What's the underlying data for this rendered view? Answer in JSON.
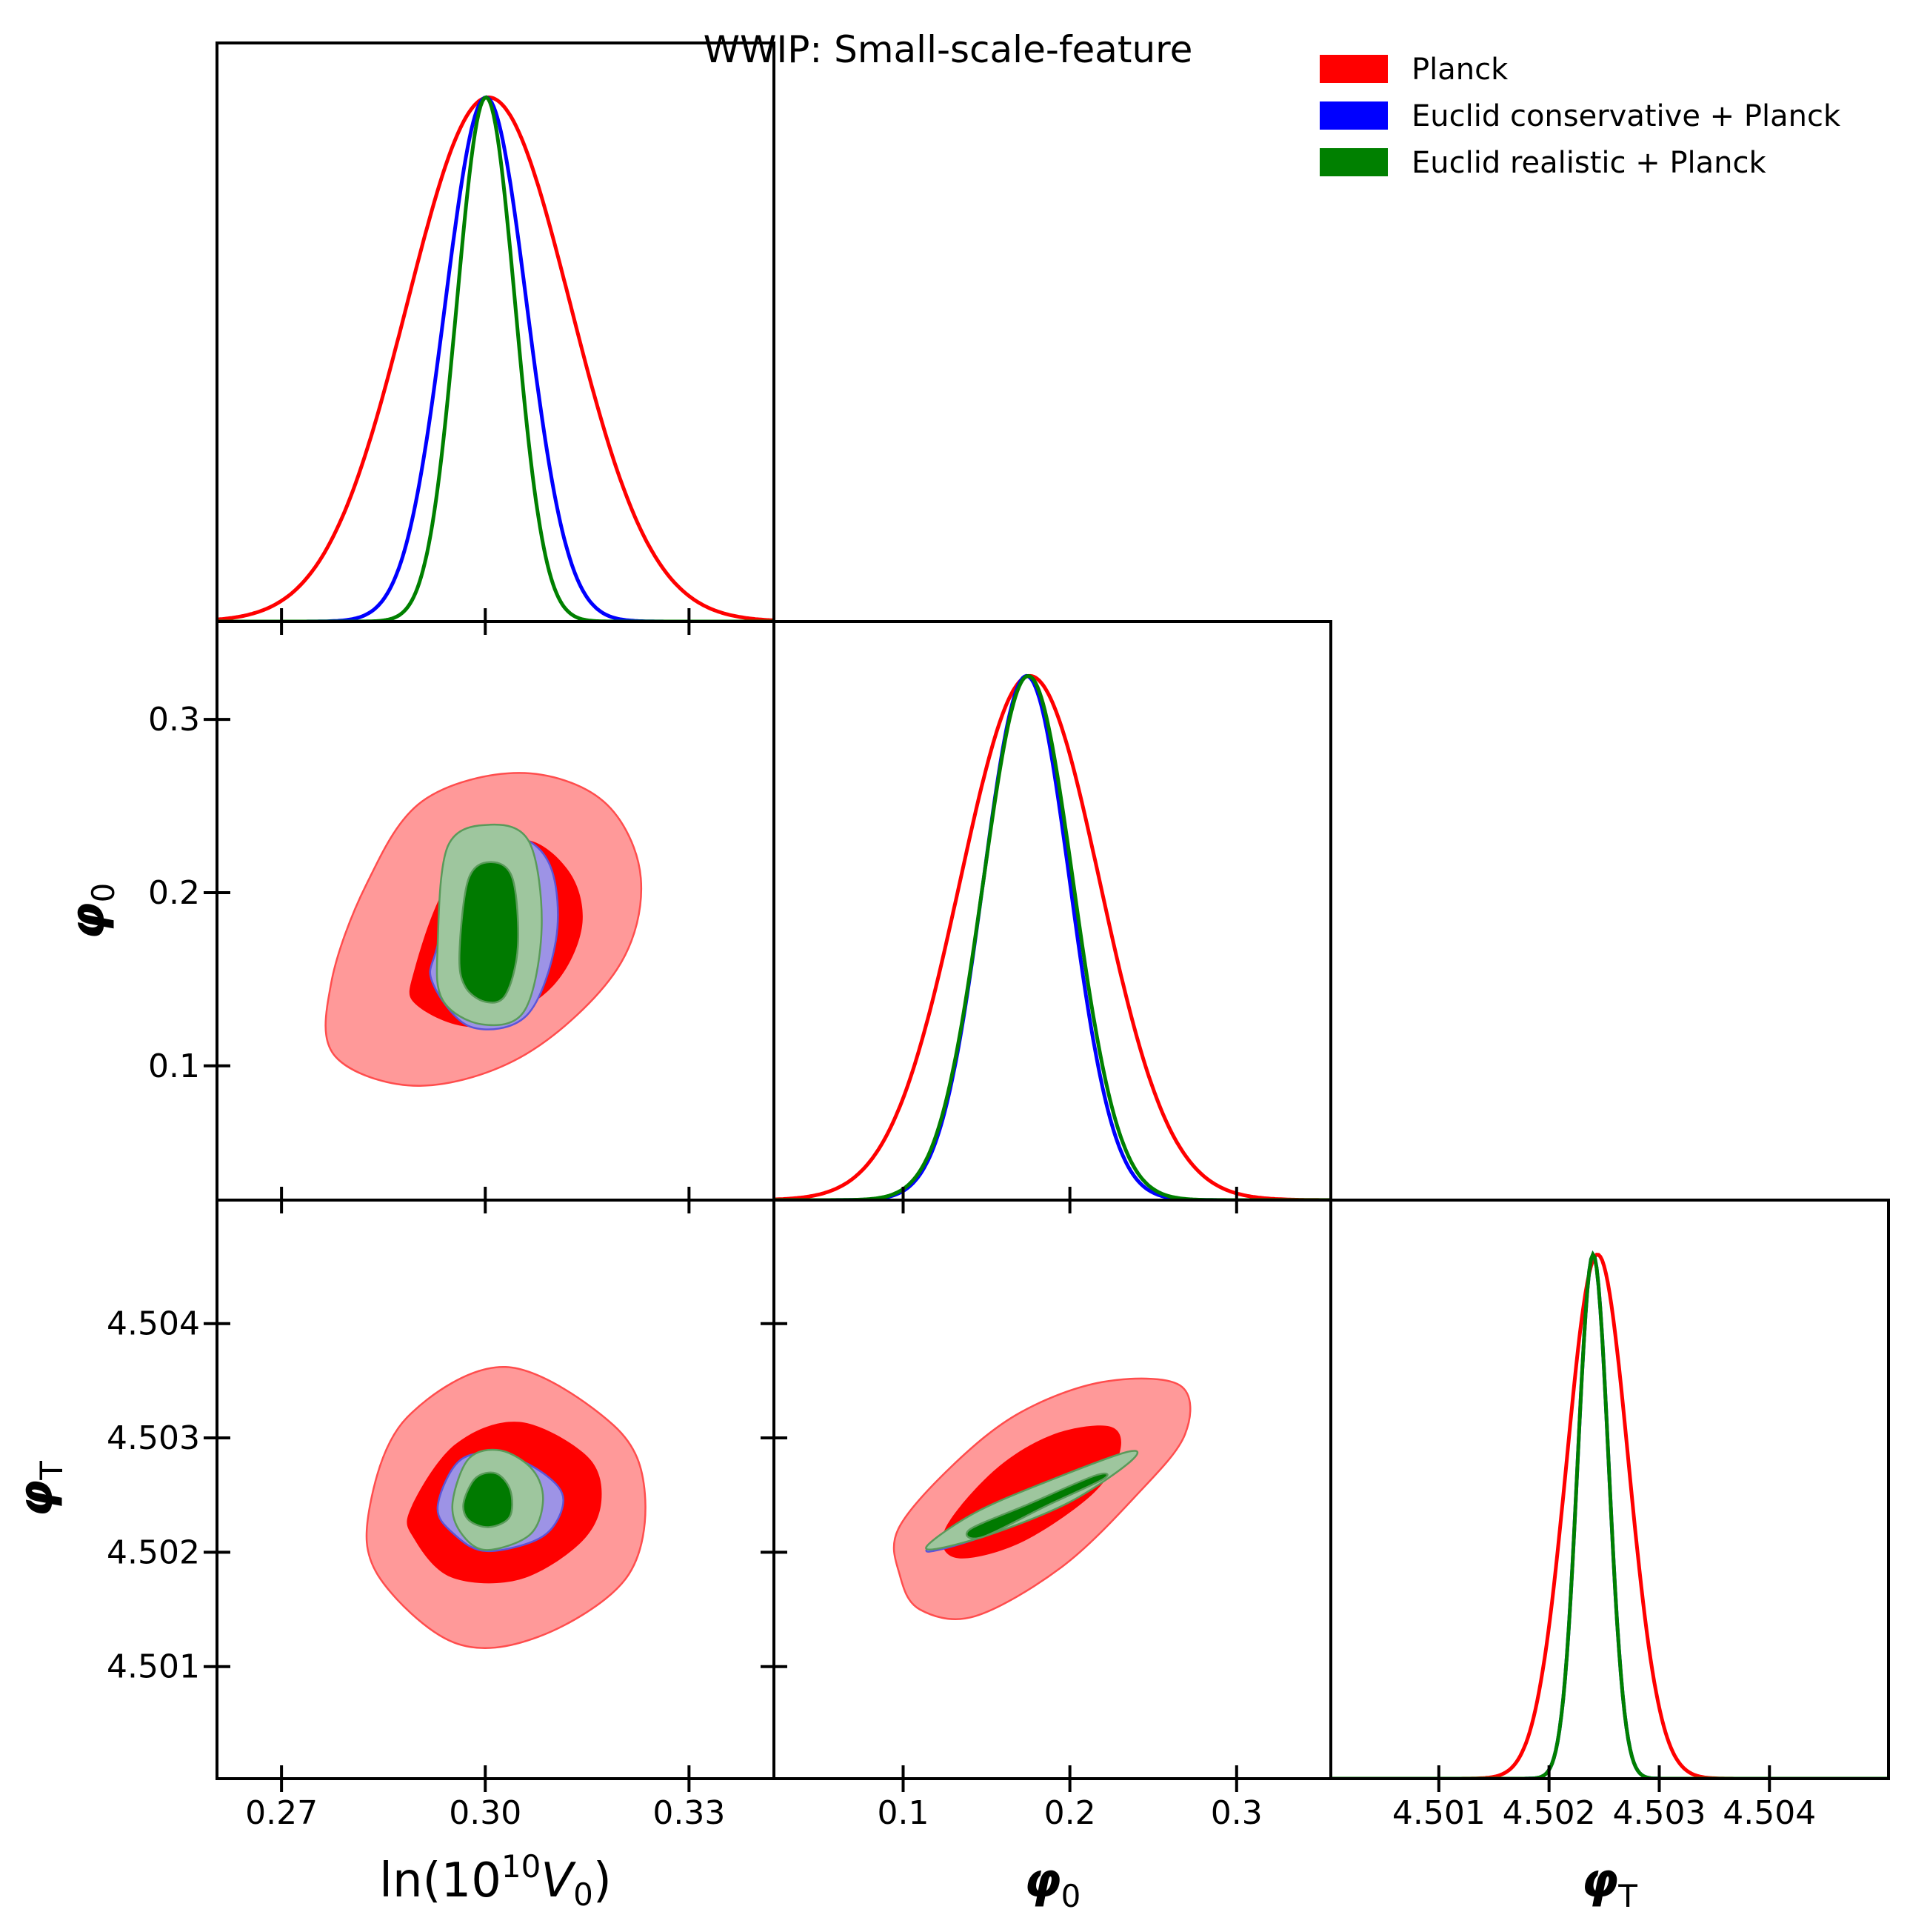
{
  "chart_data": {
    "type": "triangle-corner",
    "title": "WWIP: Small-scale-feature",
    "legend": {
      "placement": "top-right",
      "entries": [
        {
          "label": "Planck",
          "color": "#ff0000"
        },
        {
          "label": "Euclid conservative + Planck",
          "color": "#0000ff"
        },
        {
          "label": "Euclid realistic + Planck",
          "color": "#008000"
        }
      ]
    },
    "parameters": [
      {
        "key": "lnV0",
        "label": "ln(10^10 V_0)",
        "range": [
          0.2605,
          0.3425
        ],
        "ticks": [
          0.27,
          0.3,
          0.33
        ],
        "tick_labels": [
          "0.27",
          "0.30",
          "0.33"
        ]
      },
      {
        "key": "phi0",
        "label": "φ_0",
        "range": [
          0.0225,
          0.3565
        ],
        "ticks": [
          0.1,
          0.2,
          0.3
        ],
        "tick_labels": [
          "0.1",
          "0.2",
          "0.3"
        ]
      },
      {
        "key": "phiT",
        "label": "φ_T",
        "range": [
          4.50002,
          4.50508
        ],
        "ticks": [
          4.501,
          4.502,
          4.503,
          4.504
        ],
        "tick_labels": [
          "4.501",
          "4.502",
          "4.503",
          "4.504"
        ]
      }
    ],
    "marginals": [
      {
        "param": "lnV0",
        "series": [
          {
            "name": "Planck",
            "color": "#ff0000",
            "mean": 0.3005,
            "sigma": 0.012
          },
          {
            "name": "Euclid conservative + Planck",
            "color": "#0000ff",
            "mean": 0.3001,
            "sigma": 0.006
          },
          {
            "name": "Euclid realistic + Planck",
            "color": "#008000",
            "mean": 0.3001,
            "sigma": 0.0043
          }
        ]
      },
      {
        "param": "phi0",
        "series": [
          {
            "name": "Planck",
            "color": "#ff0000",
            "mean": 0.176,
            "sigma": 0.042
          },
          {
            "name": "Euclid conservative + Planck",
            "color": "#0000ff",
            "mean": 0.174,
            "sigma": 0.026
          },
          {
            "name": "Euclid realistic + Planck",
            "color": "#008000",
            "mean": 0.175,
            "sigma": 0.027
          }
        ]
      },
      {
        "param": "phiT",
        "series": [
          {
            "name": "Planck",
            "color": "#ff0000",
            "mean": 4.50244,
            "sigma": 0.00028
          },
          {
            "name": "Euclid conservative + Planck",
            "color": "#0000ff",
            "mean": 4.5024,
            "sigma": 0.00014
          },
          {
            "name": "Euclid realistic + Planck",
            "color": "#008000",
            "mean": 4.5024,
            "sigma": 0.00014
          }
        ]
      }
    ],
    "contours": [
      {
        "x": "lnV0",
        "y": "phi0",
        "series": [
          {
            "name": "Planck",
            "color": "#ff0000",
            "level": "95%",
            "center": [
              0.3,
              0.18
            ],
            "points": [
              [
                0.2825,
                0.2048
              ],
              [
                0.2907,
                0.2527
              ],
              [
                0.305,
                0.2691
              ],
              [
                0.3174,
                0.2527
              ],
              [
                0.3229,
                0.2083
              ],
              [
                0.3194,
                0.1558
              ],
              [
                0.306,
                0.1068
              ],
              [
                0.2904,
                0.0885
              ],
              [
                0.2779,
                0.1055
              ],
              [
                0.2773,
                0.1476
              ]
            ]
          },
          {
            "name": "Planck",
            "color": "#ff0000",
            "level": "68%",
            "center": [
              0.3,
              0.178
            ],
            "points": [
              [
                0.2895,
                0.1545
              ],
              [
                0.2952,
                0.2095
              ],
              [
                0.3052,
                0.2307
              ],
              [
                0.3124,
                0.2118
              ],
              [
                0.3142,
                0.1793
              ],
              [
                0.3094,
                0.1438
              ],
              [
                0.299,
                0.1226
              ],
              [
                0.29,
                0.1347
              ]
            ]
          },
          {
            "name": "Euclid conservative + Planck",
            "color": "#0000ff",
            "level": "95%",
            "center": [
              0.3,
              0.18
            ],
            "points": [
              [
                0.293,
                0.17
              ],
              [
                0.2968,
                0.2263
              ],
              [
                0.3048,
                0.2322
              ],
              [
                0.3097,
                0.214
              ],
              [
                0.3104,
                0.1724
              ],
              [
                0.3061,
                0.1291
              ],
              [
                0.2978,
                0.1226
              ],
              [
                0.2922,
                0.1485
              ]
            ]
          },
          {
            "name": "Euclid conservative + Planck",
            "color": "#0000ff",
            "level": "68%",
            "center": [
              0.3,
              0.18
            ],
            "points": [
              [
                0.298,
                0.18
              ],
              [
                0.3,
                0.216
              ],
              [
                0.303,
                0.21
              ],
              [
                0.303,
                0.16
              ],
              [
                0.3,
                0.145
              ],
              [
                0.2978,
                0.15
              ]
            ]
          },
          {
            "name": "Euclid realistic + Planck",
            "color": "#008000",
            "level": "95%",
            "center": [
              0.3,
              0.18
            ],
            "points": [
              [
                0.293,
                0.17
              ],
              [
                0.2945,
                0.2269
              ],
              [
                0.3007,
                0.2392
              ],
              [
                0.3065,
                0.229
              ],
              [
                0.3083,
                0.18
              ],
              [
                0.3058,
                0.132
              ],
              [
                0.2995,
                0.124
              ],
              [
                0.2937,
                0.1382
              ]
            ]
          },
          {
            "name": "Euclid realistic + Planck",
            "color": "#008000",
            "level": "68%",
            "center": [
              0.3,
              0.178
            ],
            "points": [
              [
                0.2962,
                0.165
              ],
              [
                0.2975,
                0.2075
              ],
              [
                0.3007,
                0.2176
              ],
              [
                0.304,
                0.2084
              ],
              [
                0.3048,
                0.169
              ],
              [
                0.303,
                0.141
              ],
              [
                0.3,
                0.137
              ],
              [
                0.297,
                0.146
              ]
            ]
          }
        ]
      },
      {
        "x": "lnV0",
        "y": "phiT",
        "series": [
          {
            "name": "Planck",
            "color": "#ff0000",
            "level": "95%",
            "center": [
              0.3,
              4.50245
            ],
            "points": [
              [
                0.283,
                4.5024
              ],
              [
                0.2885,
                4.50318
              ],
              [
                0.303,
                4.50362
              ],
              [
                0.3189,
                4.50311
              ],
              [
                0.3235,
                4.50251
              ],
              [
                0.3207,
                4.50177
              ],
              [
                0.3078,
                4.50126
              ],
              [
                0.2954,
                4.50121
              ],
              [
                0.2842,
                4.5018
              ]
            ]
          },
          {
            "name": "Planck",
            "color": "#ff0000",
            "level": "68%",
            "center": [
              0.3,
              4.50245
            ],
            "points": [
              [
                0.289,
                4.50238
              ],
              [
                0.2955,
                4.50294
              ],
              [
                0.305,
                4.50314
              ],
              [
                0.315,
                4.50284
              ],
              [
                0.3171,
                4.50245
              ],
              [
                0.314,
                4.50208
              ],
              [
                0.305,
                4.50176
              ],
              [
                0.295,
                4.50178
              ],
              [
                0.2895,
                4.50212
              ]
            ]
          },
          {
            "name": "Euclid conservative + Planck",
            "color": "#0000ff",
            "level": "95%",
            "center": [
              0.3,
              4.50245
            ],
            "points": [
              [
                0.293,
                4.5024
              ],
              [
                0.2962,
                4.5028
              ],
              [
                0.3023,
                4.50286
              ],
              [
                0.3088,
                4.50268
              ],
              [
                0.3115,
                4.50245
              ],
              [
                0.3085,
                4.50214
              ],
              [
                0.3002,
                4.50201
              ],
              [
                0.2952,
                4.50217
              ]
            ]
          },
          {
            "name": "Euclid conservative + Planck",
            "color": "#0000ff",
            "level": "68%",
            "center": [
              0.3,
              4.50244
            ],
            "points": [
              [
                0.297,
                4.50244
              ],
              [
                0.299,
                4.50262
              ],
              [
                0.302,
                4.50265
              ],
              [
                0.304,
                4.50252
              ],
              [
                0.3035,
                4.50232
              ],
              [
                0.3,
                4.50225
              ]
            ]
          },
          {
            "name": "Euclid realistic + Planck",
            "color": "#008000",
            "level": "95%",
            "center": [
              0.3,
              4.50245
            ],
            "points": [
              [
                0.2952,
                4.50244
              ],
              [
                0.2976,
                4.50282
              ],
              [
                0.3023,
                4.50289
              ],
              [
                0.307,
                4.50272
              ],
              [
                0.3085,
                4.50245
              ],
              [
                0.3065,
                4.50215
              ],
              [
                0.3,
                4.50202
              ],
              [
                0.2963,
                4.50218
              ]
            ]
          },
          {
            "name": "Euclid realistic + Planck",
            "color": "#008000",
            "level": "68%",
            "center": [
              0.3,
              4.50244
            ],
            "points": [
              [
                0.2968,
                4.50243
              ],
              [
                0.2986,
                4.50265
              ],
              [
                0.3016,
                4.50269
              ],
              [
                0.3037,
                4.50254
              ],
              [
                0.3036,
                4.50231
              ],
              [
                0.3006,
                4.50222
              ],
              [
                0.2976,
                4.50228
              ]
            ]
          }
        ]
      },
      {
        "x": "phi0",
        "y": "phiT",
        "series": [
          {
            "name": "Planck",
            "color": "#ff0000",
            "level": "95%",
            "center": [
              0.18,
              4.50245
            ],
            "points": [
              [
                0.097,
                4.5022
              ],
              [
                0.129,
                4.50275
              ],
              [
                0.17,
                4.50322
              ],
              [
                0.22,
                4.50349
              ],
              [
                0.266,
                4.50346
              ],
              [
                0.269,
                4.50303
              ],
              [
                0.24,
                4.5025
              ],
              [
                0.195,
                4.50187
              ],
              [
                0.143,
                4.50144
              ],
              [
                0.11,
                4.5015
              ],
              [
                0.098,
                4.5018
              ]
            ]
          },
          {
            "name": "Planck",
            "color": "#ff0000",
            "level": "68%",
            "center": [
              0.18,
              4.50248
            ],
            "points": [
              [
                0.125,
                4.5022
              ],
              [
                0.155,
                4.50272
              ],
              [
                0.19,
                4.50303
              ],
              [
                0.224,
                4.5031
              ],
              [
                0.23,
                4.50288
              ],
              [
                0.213,
                4.5025
              ],
              [
                0.17,
                4.50208
              ],
              [
                0.132,
                4.50195
              ]
            ]
          },
          {
            "name": "Euclid conservative + Planck",
            "color": "#0000ff",
            "level": "95%",
            "center": [
              0.175,
              4.50245
            ],
            "points": [
              [
                0.115,
                4.50204
              ],
              [
                0.145,
                4.50235
              ],
              [
                0.19,
                4.50263
              ],
              [
                0.233,
                4.50287
              ],
              [
                0.236,
                4.50282
              ],
              [
                0.2,
                4.50246
              ],
              [
                0.16,
                4.5022
              ],
              [
                0.124,
                4.50203
              ]
            ]
          },
          {
            "name": "Euclid conservative + Planck",
            "color": "#0000ff",
            "level": "68%",
            "center": [
              0.18,
              4.50248
            ],
            "points": [
              [
                0.145,
                4.5022
              ],
              [
                0.18,
                4.50245
              ],
              [
                0.215,
                4.50265
              ],
              [
                0.218,
                4.50261
              ],
              [
                0.185,
                4.50238
              ],
              [
                0.15,
                4.50215
              ]
            ]
          },
          {
            "name": "Euclid realistic + Planck",
            "color": "#008000",
            "level": "95%",
            "center": [
              0.175,
              4.50245
            ],
            "points": [
              [
                0.116,
                4.50208
              ],
              [
                0.145,
                4.50236
              ],
              [
                0.19,
                4.50264
              ],
              [
                0.235,
                4.50288
              ],
              [
                0.236,
                4.50279
              ],
              [
                0.2,
                4.50244
              ],
              [
                0.155,
                4.50217
              ],
              [
                0.12,
                4.50203
              ]
            ]
          },
          {
            "name": "Euclid realistic + Planck",
            "color": "#008000",
            "level": "68%",
            "center": [
              0.18,
              4.50248
            ],
            "points": [
              [
                0.14,
                4.5022
              ],
              [
                0.175,
                4.50242
              ],
              [
                0.215,
                4.50267
              ],
              [
                0.22,
                4.50264
              ],
              [
                0.185,
                4.5024
              ],
              [
                0.147,
                4.50213
              ]
            ]
          }
        ]
      }
    ],
    "grid": false
  }
}
